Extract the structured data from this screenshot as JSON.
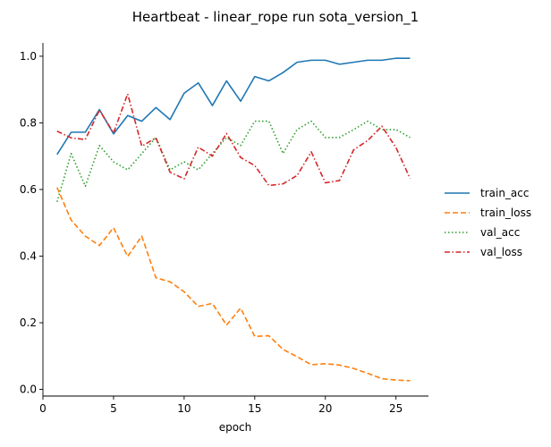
{
  "chart_data": {
    "type": "line",
    "title": "Heartbeat - linear_rope run sota_version_1",
    "xlabel": "epoch",
    "ylabel": "",
    "xlim": [
      0,
      27.3
    ],
    "ylim": [
      -0.02,
      1.04
    ],
    "xticks": [
      0,
      5,
      10,
      15,
      20,
      25
    ],
    "yticks": [
      0.0,
      0.2,
      0.4,
      0.6,
      0.8,
      1.0
    ],
    "xtick_labels": [
      "0",
      "5",
      "10",
      "15",
      "20",
      "25"
    ],
    "ytick_labels": [
      "0.0",
      "0.2",
      "0.4",
      "0.6",
      "0.8",
      "1.0"
    ],
    "legend_position": "right",
    "x": [
      1,
      2,
      3,
      4,
      5,
      6,
      7,
      8,
      9,
      10,
      11,
      12,
      13,
      14,
      15,
      16,
      17,
      18,
      19,
      20,
      21,
      22,
      23,
      24,
      25,
      26
    ],
    "series": [
      {
        "name": "train_acc",
        "color": "#1f77b4",
        "dash": "solid",
        "values": [
          0.705,
          0.772,
          0.772,
          0.84,
          0.767,
          0.822,
          0.805,
          0.846,
          0.81,
          0.889,
          0.92,
          0.852,
          0.926,
          0.865,
          0.939,
          0.926,
          0.951,
          0.982,
          0.988,
          0.988,
          0.976,
          0.982,
          0.988,
          0.988,
          0.994,
          0.994
        ]
      },
      {
        "name": "train_loss",
        "color": "#ff7f0e",
        "dash": "dashed",
        "values": [
          0.606,
          0.508,
          0.46,
          0.432,
          0.485,
          0.399,
          0.46,
          0.335,
          0.323,
          0.293,
          0.249,
          0.258,
          0.193,
          0.244,
          0.159,
          0.161,
          0.12,
          0.098,
          0.074,
          0.077,
          0.073,
          0.063,
          0.048,
          0.032,
          0.028,
          0.026
        ]
      },
      {
        "name": "val_acc",
        "color": "#2ca02c",
        "dash": "dotted",
        "values": [
          0.563,
          0.708,
          0.61,
          0.732,
          0.683,
          0.659,
          0.708,
          0.756,
          0.659,
          0.683,
          0.659,
          0.708,
          0.756,
          0.732,
          0.805,
          0.805,
          0.708,
          0.78,
          0.805,
          0.756,
          0.756,
          0.78,
          0.805,
          0.78,
          0.78,
          0.756
        ]
      },
      {
        "name": "val_loss",
        "color": "#d62728",
        "dash": "dashdot",
        "values": [
          0.775,
          0.755,
          0.75,
          0.838,
          0.77,
          0.887,
          0.73,
          0.755,
          0.652,
          0.632,
          0.727,
          0.7,
          0.768,
          0.696,
          0.672,
          0.612,
          0.617,
          0.642,
          0.713,
          0.62,
          0.627,
          0.719,
          0.747,
          0.79,
          0.726,
          0.633
        ]
      }
    ]
  }
}
